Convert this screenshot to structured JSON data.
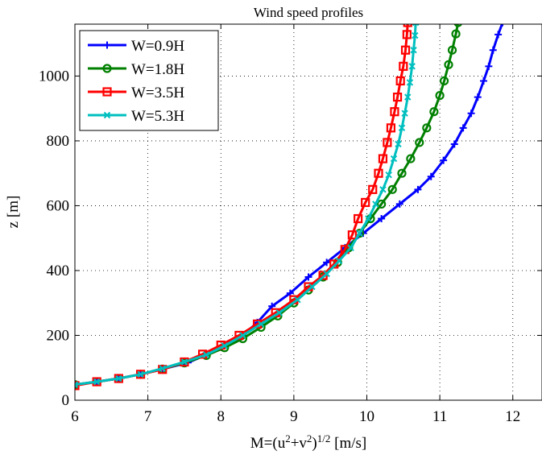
{
  "chart_data": {
    "type": "line",
    "title": "Wind speed profiles",
    "xlabel_main": "M=(u",
    "xlabel_sup1": "2",
    "xlabel_mid": "+v",
    "xlabel_sup2": "2",
    "xlabel_close": ")",
    "xlabel_sup3": "1/2",
    "xlabel_unit": " [m/s]",
    "ylabel": "z [m]",
    "xlim": [
      6,
      12.4
    ],
    "ylim": [
      0,
      1160
    ],
    "xticks": [
      6,
      7,
      8,
      9,
      10,
      11,
      12
    ],
    "yticks": [
      0,
      200,
      400,
      600,
      800,
      1000
    ],
    "grid": true,
    "legend_position": "top-left",
    "series": [
      {
        "name": "W=0.9H",
        "color": "#0000ff",
        "marker": "plus",
        "points": [
          [
            6.0,
            48
          ],
          [
            6.3,
            57
          ],
          [
            6.6,
            67
          ],
          [
            6.9,
            80
          ],
          [
            7.2,
            96
          ],
          [
            7.55,
            116
          ],
          [
            7.8,
            140
          ],
          [
            8.05,
            168
          ],
          [
            8.3,
            200
          ],
          [
            8.5,
            240
          ],
          [
            8.7,
            290
          ],
          [
            8.95,
            330
          ],
          [
            9.2,
            380
          ],
          [
            9.45,
            425
          ],
          [
            9.7,
            470
          ],
          [
            9.95,
            515
          ],
          [
            10.2,
            560
          ],
          [
            10.45,
            605
          ],
          [
            10.7,
            650
          ],
          [
            10.88,
            690
          ],
          [
            11.05,
            740
          ],
          [
            11.2,
            790
          ],
          [
            11.32,
            840
          ],
          [
            11.43,
            885
          ],
          [
            11.52,
            935
          ],
          [
            11.6,
            985
          ],
          [
            11.67,
            1030
          ],
          [
            11.73,
            1080
          ],
          [
            11.8,
            1128
          ],
          [
            11.86,
            1165
          ]
        ]
      },
      {
        "name": "W=1.8H",
        "color": "#008000",
        "marker": "circle",
        "points": [
          [
            6.0,
            48
          ],
          [
            6.3,
            57
          ],
          [
            6.6,
            67
          ],
          [
            6.9,
            80
          ],
          [
            7.2,
            96
          ],
          [
            7.5,
            115
          ],
          [
            7.8,
            138
          ],
          [
            8.05,
            162
          ],
          [
            8.3,
            190
          ],
          [
            8.55,
            225
          ],
          [
            8.78,
            260
          ],
          [
            9.0,
            300
          ],
          [
            9.2,
            340
          ],
          [
            9.4,
            380
          ],
          [
            9.6,
            425
          ],
          [
            9.75,
            470
          ],
          [
            9.9,
            515
          ],
          [
            10.05,
            560
          ],
          [
            10.2,
            605
          ],
          [
            10.35,
            650
          ],
          [
            10.48,
            700
          ],
          [
            10.6,
            745
          ],
          [
            10.72,
            795
          ],
          [
            10.82,
            840
          ],
          [
            10.92,
            890
          ],
          [
            11.0,
            940
          ],
          [
            11.06,
            985
          ],
          [
            11.12,
            1035
          ],
          [
            11.17,
            1080
          ],
          [
            11.22,
            1130
          ],
          [
            11.25,
            1165
          ]
        ]
      },
      {
        "name": "W=3.5H",
        "color": "#ff0000",
        "marker": "square",
        "points": [
          [
            6.0,
            45
          ],
          [
            6.3,
            57
          ],
          [
            6.6,
            67
          ],
          [
            6.9,
            80
          ],
          [
            7.2,
            95
          ],
          [
            7.5,
            118
          ],
          [
            7.75,
            142
          ],
          [
            8.0,
            170
          ],
          [
            8.25,
            200
          ],
          [
            8.5,
            235
          ],
          [
            8.75,
            270
          ],
          [
            9.0,
            310
          ],
          [
            9.2,
            350
          ],
          [
            9.4,
            385
          ],
          [
            9.55,
            420
          ],
          [
            9.7,
            465
          ],
          [
            9.8,
            510
          ],
          [
            9.88,
            560
          ],
          [
            9.98,
            610
          ],
          [
            10.08,
            650
          ],
          [
            10.16,
            700
          ],
          [
            10.22,
            745
          ],
          [
            10.28,
            795
          ],
          [
            10.33,
            840
          ],
          [
            10.38,
            890
          ],
          [
            10.42,
            935
          ],
          [
            10.46,
            985
          ],
          [
            10.5,
            1030
          ],
          [
            10.53,
            1080
          ],
          [
            10.55,
            1128
          ],
          [
            10.56,
            1165
          ]
        ]
      },
      {
        "name": "W=5.3H",
        "color": "#00bfbf",
        "marker": "x",
        "points": [
          [
            6.0,
            48
          ],
          [
            6.3,
            57
          ],
          [
            6.6,
            67
          ],
          [
            6.9,
            80
          ],
          [
            7.2,
            98
          ],
          [
            7.5,
            118
          ],
          [
            7.8,
            140
          ],
          [
            8.05,
            168
          ],
          [
            8.3,
            200
          ],
          [
            8.55,
            235
          ],
          [
            8.8,
            270
          ],
          [
            9.05,
            310
          ],
          [
            9.25,
            350
          ],
          [
            9.45,
            390
          ],
          [
            9.62,
            430
          ],
          [
            9.78,
            470
          ],
          [
            9.9,
            515
          ],
          [
            10.02,
            560
          ],
          [
            10.12,
            605
          ],
          [
            10.22,
            650
          ],
          [
            10.3,
            695
          ],
          [
            10.37,
            745
          ],
          [
            10.43,
            790
          ],
          [
            10.48,
            840
          ],
          [
            10.52,
            885
          ],
          [
            10.56,
            935
          ],
          [
            10.59,
            980
          ],
          [
            10.62,
            1030
          ],
          [
            10.64,
            1080
          ],
          [
            10.66,
            1125
          ],
          [
            10.67,
            1165
          ]
        ]
      }
    ]
  }
}
